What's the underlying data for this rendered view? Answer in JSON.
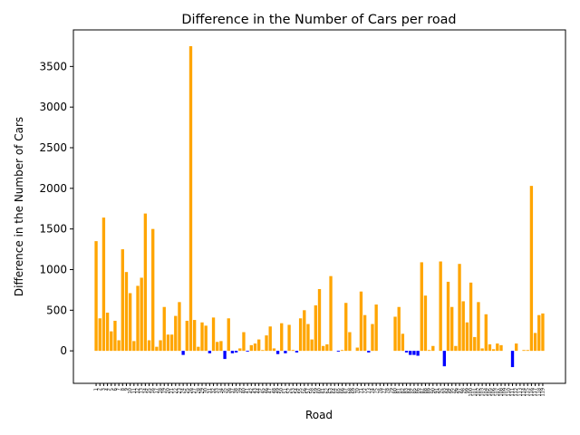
{
  "chart_data": {
    "type": "bar",
    "title": "Difference in the Number of Cars per road",
    "x_label": "Road",
    "y_label": "Difference in the Number of Cars",
    "categories": [
      "1",
      "2",
      "3",
      "4",
      "5",
      "6",
      "7",
      "8",
      "9",
      "10",
      "11",
      "12",
      "13",
      "14",
      "15",
      "16",
      "17",
      "18",
      "19",
      "20",
      "21",
      "22",
      "23",
      "24",
      "25",
      "26",
      "27",
      "28",
      "29",
      "30",
      "31",
      "32",
      "33",
      "34",
      "35",
      "36",
      "37",
      "38",
      "39",
      "40",
      "41",
      "42",
      "43",
      "44",
      "45",
      "46",
      "47",
      "48",
      "49",
      "50",
      "51",
      "52",
      "53",
      "54",
      "55",
      "56",
      "57",
      "58",
      "59",
      "60",
      "61",
      "62",
      "63",
      "64",
      "65",
      "66",
      "67",
      "68",
      "69",
      "70",
      "71",
      "72",
      "73",
      "74",
      "75",
      "76",
      "77",
      "78",
      "79",
      "80",
      "81",
      "82",
      "83",
      "84",
      "85",
      "86",
      "87",
      "88",
      "89",
      "90",
      "91",
      "92",
      "93",
      "94",
      "95",
      "96",
      "97",
      "98",
      "99",
      "100",
      "101",
      "102",
      "103",
      "104",
      "105",
      "106",
      "107",
      "108",
      "109",
      "110",
      "111",
      "112",
      "113",
      "114",
      "115",
      "116",
      "117",
      "118",
      "119"
    ],
    "values": [
      1350,
      400,
      1640,
      470,
      240,
      370,
      130,
      1250,
      970,
      710,
      120,
      800,
      900,
      1690,
      130,
      1500,
      50,
      130,
      540,
      200,
      200,
      430,
      600,
      -50,
      370,
      3750,
      380,
      50,
      350,
      310,
      -30,
      410,
      110,
      120,
      -100,
      400,
      -30,
      -20,
      30,
      230,
      -10,
      70,
      90,
      140,
      10,
      190,
      300,
      30,
      -40,
      340,
      -30,
      320,
      10,
      -20,
      400,
      500,
      330,
      140,
      560,
      760,
      60,
      80,
      920,
      0,
      -10,
      10,
      590,
      230,
      0,
      40,
      730,
      440,
      -20,
      330,
      570,
      0,
      0,
      0,
      0,
      420,
      540,
      210,
      -20,
      -50,
      -50,
      -60,
      1090,
      680,
      10,
      60,
      0,
      1100,
      -190,
      850,
      540,
      60,
      1070,
      610,
      350,
      840,
      170,
      600,
      30,
      450,
      80,
      20,
      90,
      70,
      0,
      0,
      -200,
      90,
      0,
      10,
      10,
      2030,
      220,
      440,
      460
    ],
    "color_positive": "orange",
    "color_negative": "blue",
    "ylim": [
      -400,
      3950
    ],
    "yticks": [
      0,
      500,
      1000,
      1500,
      2000,
      2500,
      3000,
      3500
    ],
    "grid": false
  }
}
